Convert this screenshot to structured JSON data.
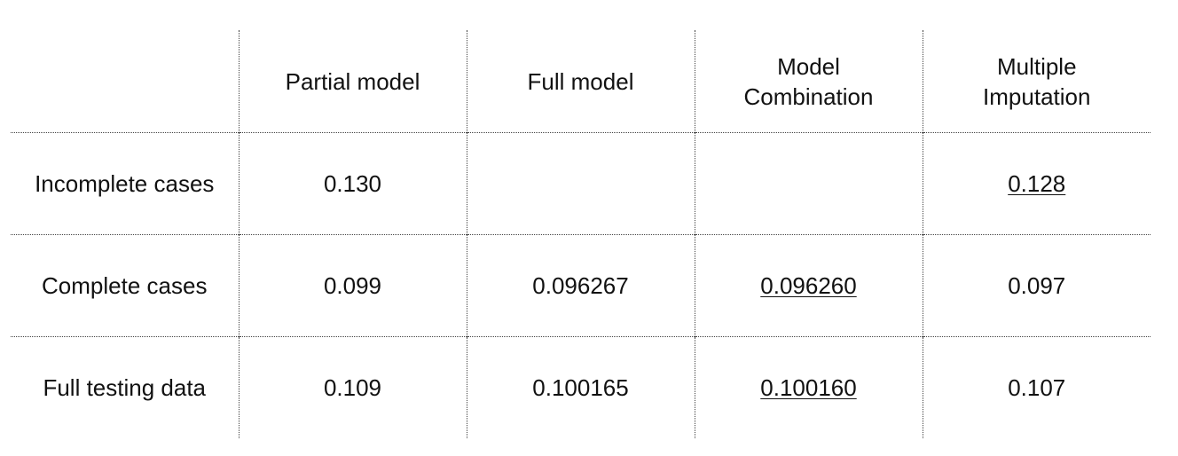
{
  "table": {
    "headers": [
      {
        "lines": [
          ""
        ]
      },
      {
        "lines": [
          "Partial model"
        ]
      },
      {
        "lines": [
          "Full model"
        ]
      },
      {
        "lines": [
          "Model",
          "Combination"
        ]
      },
      {
        "lines": [
          "Multiple",
          "Imputation"
        ]
      }
    ],
    "rows": [
      {
        "label": "Incomplete cases",
        "cells": [
          {
            "value": "0.130",
            "underline": false
          },
          {
            "value": "",
            "underline": false
          },
          {
            "value": "",
            "underline": false
          },
          {
            "value": "0.128",
            "underline": true
          }
        ]
      },
      {
        "label": "Complete cases",
        "cells": [
          {
            "value": "0.099",
            "underline": false
          },
          {
            "value": "0.096267",
            "underline": false
          },
          {
            "value": "0.096260",
            "underline": true
          },
          {
            "value": "0.097",
            "underline": false
          }
        ]
      },
      {
        "label": "Full testing data",
        "cells": [
          {
            "value": "0.109",
            "underline": false
          },
          {
            "value": "0.100165",
            "underline": false
          },
          {
            "value": "0.100160",
            "underline": true
          },
          {
            "value": "0.107",
            "underline": false
          }
        ]
      }
    ]
  }
}
